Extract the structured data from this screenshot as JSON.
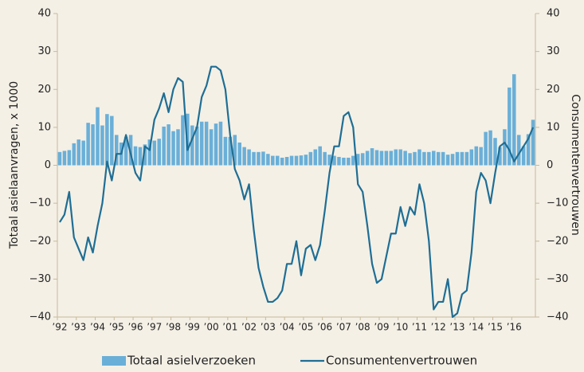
{
  "chart_data": {
    "type": "bar-line",
    "y_label": "Totaal asielaanvragen, x 1000",
    "y2_label": "Consumentenvertrouwen",
    "categories": [
      "’92",
      null,
      null,
      null,
      "’93",
      null,
      null,
      null,
      "’94",
      null,
      null,
      null,
      "’95",
      null,
      null,
      null,
      "’96",
      null,
      null,
      null,
      "’97",
      null,
      null,
      null,
      "’98",
      null,
      null,
      null,
      "’99",
      null,
      null,
      null,
      "’00",
      null,
      null,
      null,
      "’01",
      null,
      null,
      null,
      "’02",
      null,
      null,
      null,
      "’03",
      null,
      null,
      null,
      "’04",
      null,
      null,
      null,
      "’05",
      null,
      null,
      null,
      "’06",
      null,
      null,
      null,
      "’07",
      null,
      null,
      null,
      "’08",
      null,
      null,
      null,
      "’09",
      null,
      null,
      null,
      "’10",
      null,
      null,
      null,
      "’11",
      null,
      null,
      null,
      "’12",
      null,
      null,
      null,
      "’13",
      null,
      null,
      null,
      "’14",
      null,
      null,
      null,
      "’15",
      null,
      null,
      null,
      "’16",
      null,
      null,
      null,
      null
    ],
    "series": [
      {
        "name": "Totaal asielverzoeken",
        "kind": "bar",
        "color": "#6aafd8",
        "values": [
          3.5,
          3.8,
          4.0,
          5.8,
          6.8,
          6.5,
          11.2,
          10.8,
          15.3,
          10.5,
          13.5,
          13.0,
          8.0,
          6.0,
          7.5,
          8.0,
          5.0,
          4.8,
          5.5,
          6.8,
          6.5,
          7.0,
          10.2,
          10.8,
          9.0,
          9.5,
          13.2,
          13.6,
          10.5,
          10.2,
          11.5,
          11.5,
          9.5,
          11.0,
          11.5,
          7.5,
          7.5,
          8.0,
          6.0,
          4.8,
          4.2,
          3.5,
          3.5,
          3.6,
          3.0,
          2.5,
          2.5,
          2.0,
          2.2,
          2.5,
          2.5,
          2.6,
          2.8,
          3.5,
          4.2,
          5.0,
          3.5,
          2.8,
          2.5,
          2.2,
          2.0,
          2.0,
          2.5,
          3.0,
          3.2,
          3.8,
          4.5,
          4.0,
          3.8,
          3.8,
          3.8,
          4.2,
          4.2,
          3.8,
          3.2,
          3.5,
          4.2,
          3.5,
          3.5,
          3.8,
          3.5,
          3.5,
          2.8,
          3.0,
          3.5,
          3.5,
          3.5,
          4.2,
          5.0,
          4.8,
          8.8,
          9.2,
          7.2,
          4.8,
          9.5,
          20.5,
          24.0,
          8.0,
          5.0,
          8.2,
          12.0
        ]
      },
      {
        "name": "Consumentenvertrouwen",
        "kind": "line",
        "axis": "y2",
        "color": "#1f6e94",
        "values": [
          -15,
          -13,
          -7,
          -19,
          -22,
          -25,
          -19,
          -23,
          -16,
          -10,
          1,
          -4,
          3,
          3,
          8,
          3,
          -2,
          -4,
          5,
          4,
          12,
          15,
          19,
          14,
          20,
          23,
          22,
          4,
          7,
          10,
          18,
          21,
          26,
          26,
          25,
          20,
          8,
          -1,
          -4,
          -9,
          -5,
          -17,
          -27,
          -32,
          -36,
          -36,
          -35,
          -33,
          -26,
          -26,
          -20,
          -29,
          -22,
          -21,
          -25,
          -21,
          -12,
          -2,
          5,
          5,
          13,
          14,
          10,
          -5,
          -7,
          -16,
          -26,
          -31,
          -30,
          -24,
          -18,
          -18,
          -11,
          -16,
          -11,
          -13,
          -5,
          -10,
          -20,
          -38,
          -36,
          -36,
          -30,
          -40,
          -39,
          -34,
          -33,
          -23,
          -7,
          -2,
          -4,
          -10,
          -2,
          5,
          6,
          4,
          1,
          3,
          5,
          7,
          10
        ]
      }
    ],
    "ylim": [
      -40,
      40
    ],
    "yticks": [
      {
        "value": -40,
        "label": "−40"
      },
      {
        "value": -30,
        "label": "−30"
      },
      {
        "value": -20,
        "label": "−20"
      },
      {
        "value": -10,
        "label": "−10"
      },
      0,
      10,
      20,
      30,
      40
    ],
    "y2lim": [
      -40,
      40
    ],
    "y2ticks": [
      {
        "value": -40,
        "label": "−40"
      },
      {
        "value": -30,
        "label": "−30"
      },
      {
        "value": -20,
        "label": "−20"
      },
      {
        "value": -10,
        "label": "−10"
      },
      0,
      10,
      20,
      30,
      40
    ],
    "legend": "bottom"
  }
}
